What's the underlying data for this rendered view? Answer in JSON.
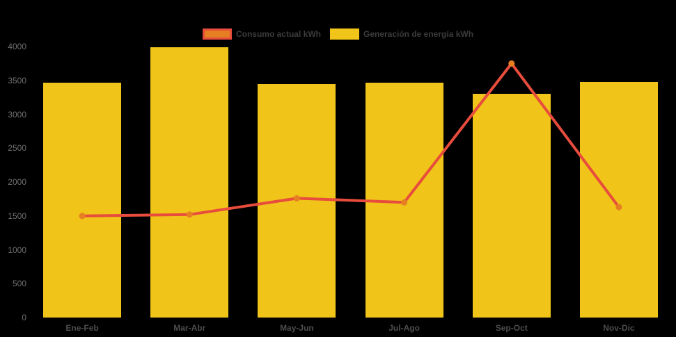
{
  "chart_data": {
    "type": "bar+line",
    "title": "",
    "categories": [
      "Ene-Feb",
      "Mar-Abr",
      "May-Jun",
      "Jul-Ago",
      "Sep-Oct",
      "Nov-Dic"
    ],
    "series": [
      {
        "name": "Consumo actual kWh",
        "type": "line",
        "values": [
          1500,
          1520,
          1760,
          1700,
          3750,
          1630
        ],
        "line_color": "#e74c3c",
        "point_color": "#e67e22"
      },
      {
        "name": "Generación de energía kWh",
        "type": "bar",
        "values": [
          3470,
          3990,
          3450,
          3470,
          3300,
          3480
        ],
        "color": "#f0c419"
      }
    ],
    "xlabel": "",
    "ylabel": "",
    "ylim": [
      0,
      4000
    ],
    "yticks": [
      0,
      500,
      1000,
      1500,
      2000,
      2500,
      3000,
      3500,
      4000
    ],
    "grid": false,
    "legend_position": "top",
    "colors": {
      "background": "#000000",
      "y_tick_text": "#6f6f6f",
      "x_tick_text": "#4d4d4d",
      "legend_text": "#3c3c3c"
    }
  }
}
